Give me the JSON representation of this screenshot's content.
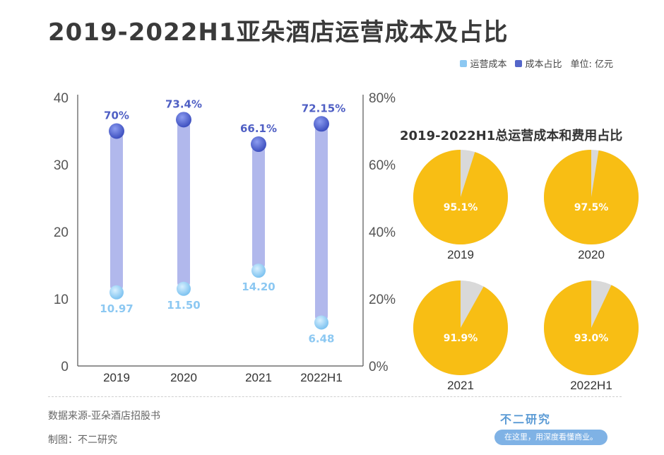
{
  "title": "2019-2022H1亚朵酒店运营成本及占比",
  "legend": {
    "items": [
      {
        "label": "运营成本",
        "color": "#8cc8f2"
      },
      {
        "label": "成本占比",
        "color": "#5466c9"
      }
    ],
    "unit": "单位: 亿元"
  },
  "chart_data": [
    {
      "type": "bar",
      "categories": [
        "2019",
        "2020",
        "2021",
        "2022H1"
      ],
      "series": [
        {
          "name": "运营成本",
          "values": [
            10.97,
            11.5,
            14.2,
            6.48
          ],
          "labels": [
            "10.97",
            "11.50",
            "14.20",
            "6.48"
          ]
        },
        {
          "name": "成本占比",
          "values": [
            70,
            73.4,
            66.1,
            72.15
          ],
          "labels": [
            "70%",
            "73.4%",
            "66.1%",
            "72.15%"
          ]
        }
      ],
      "y_left": {
        "ticks": [
          "0",
          "10",
          "20",
          "30",
          "40"
        ],
        "lim": [
          0,
          40
        ]
      },
      "y_right": {
        "ticks": [
          "0%",
          "20%",
          "40%",
          "60%",
          "80%"
        ],
        "lim": [
          0,
          80
        ]
      }
    },
    {
      "type": "pie",
      "title": "2019-2022H1总运营成本和费用占比",
      "pies": [
        {
          "category": "2019",
          "value": 95.1,
          "label": "95.1%"
        },
        {
          "category": "2020",
          "value": 97.5,
          "label": "97.5%"
        },
        {
          "category": "2021",
          "value": 91.9,
          "label": "91.9%"
        },
        {
          "category": "2022H1",
          "value": 93.0,
          "label": "93.0%"
        }
      ],
      "colors": {
        "main": "#f8be14",
        "rest": "#d9d9d9"
      }
    }
  ],
  "footer": {
    "source": "数据来源-亚朵酒店招股书",
    "maker": "制图：不二研究",
    "brand": "不二研究",
    "slogan": "在这里，用深度看懂商业。"
  }
}
